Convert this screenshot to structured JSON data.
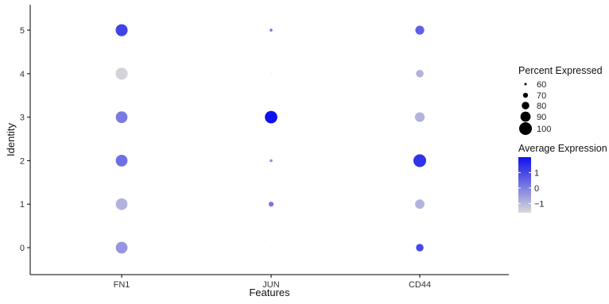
{
  "chart_data": {
    "type": "dotplot",
    "xlabel": "Features",
    "ylabel": "Identity",
    "features": [
      "FN1",
      "JUN",
      "CD44"
    ],
    "identities": [
      "0",
      "1",
      "2",
      "3",
      "4",
      "5"
    ],
    "points": [
      {
        "feature": "FN1",
        "identity": "5",
        "percent": 97,
        "avg_exp": 1.1
      },
      {
        "feature": "FN1",
        "identity": "4",
        "percent": 97,
        "avg_exp": -1.5
      },
      {
        "feature": "FN1",
        "identity": "3",
        "percent": 96,
        "avg_exp": 0.1
      },
      {
        "feature": "FN1",
        "identity": "2",
        "percent": 96,
        "avg_exp": 0.3
      },
      {
        "feature": "FN1",
        "identity": "1",
        "percent": 96,
        "avg_exp": -0.9
      },
      {
        "feature": "FN1",
        "identity": "0",
        "percent": 96,
        "avg_exp": -0.4
      },
      {
        "feature": "JUN",
        "identity": "5",
        "percent": 62,
        "avg_exp": 0.1
      },
      {
        "feature": "JUN",
        "identity": "4",
        "percent": 54,
        "avg_exp": -1.3
      },
      {
        "feature": "JUN",
        "identity": "3",
        "percent": 99,
        "avg_exp": 2.0
      },
      {
        "feature": "JUN",
        "identity": "2",
        "percent": 62,
        "avg_exp": -0.3
      },
      {
        "feature": "JUN",
        "identity": "1",
        "percent": 70,
        "avg_exp": 0.2
      },
      {
        "feature": "JUN",
        "identity": "0",
        "percent": 52,
        "avg_exp": -1.0
      },
      {
        "feature": "CD44",
        "identity": "5",
        "percent": 85,
        "avg_exp": 0.6
      },
      {
        "feature": "CD44",
        "identity": "4",
        "percent": 80,
        "avg_exp": -0.9
      },
      {
        "feature": "CD44",
        "identity": "3",
        "percent": 88,
        "avg_exp": -0.9
      },
      {
        "feature": "CD44",
        "identity": "2",
        "percent": 100,
        "avg_exp": 1.4
      },
      {
        "feature": "CD44",
        "identity": "1",
        "percent": 87,
        "avg_exp": -0.9
      },
      {
        "feature": "CD44",
        "identity": "0",
        "percent": 80,
        "avg_exp": 1.0
      }
    ],
    "size_legend": {
      "title": "Percent Expressed",
      "values": [
        60,
        70,
        80,
        90,
        100
      ],
      "labels": [
        "60",
        "70",
        "80",
        "90",
        "100"
      ]
    },
    "color_legend": {
      "title": "Average Expression",
      "ticks": [
        1,
        0,
        -1
      ],
      "labels": [
        "1",
        "0",
        "−1"
      ],
      "range": [
        -1.6,
        2.0
      ],
      "low_color": "#d9d9d9",
      "high_color": "#1010ee"
    },
    "grid": false
  }
}
